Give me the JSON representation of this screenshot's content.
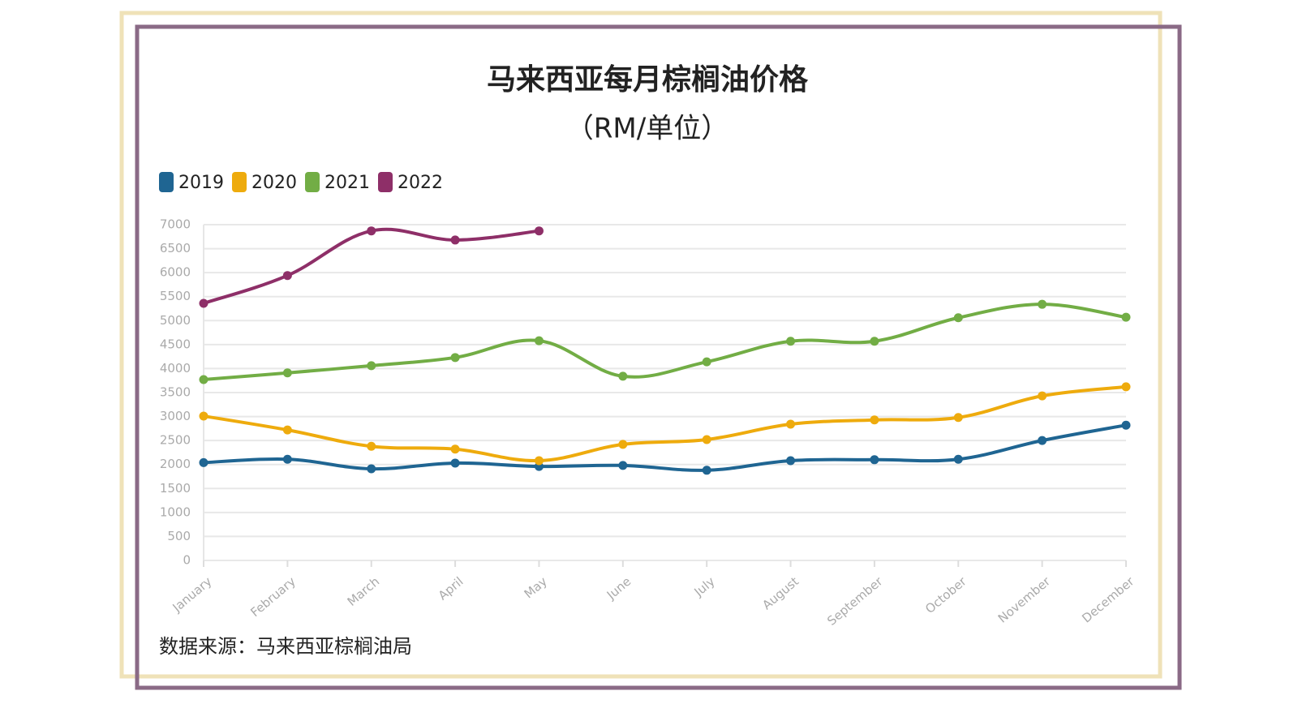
{
  "chart_data": {
    "type": "line",
    "title": "马来西亚每月棕榈油价格",
    "subtitle": "（RM/单位）",
    "source": "数据来源：马来西亚棕榈油局",
    "categories": [
      "January",
      "February",
      "March",
      "April",
      "May",
      "June",
      "July",
      "August",
      "September",
      "October",
      "November",
      "December"
    ],
    "series": [
      {
        "name": "2019",
        "color": "#1f6592",
        "values": [
          2040,
          2110,
          1910,
          2030,
          1960,
          1980,
          1880,
          2080,
          2100,
          2110,
          2500,
          2820
        ]
      },
      {
        "name": "2020",
        "color": "#eeab0d",
        "values": [
          3010,
          2720,
          2380,
          2320,
          2080,
          2420,
          2520,
          2840,
          2930,
          2980,
          3430,
          3620
        ]
      },
      {
        "name": "2021",
        "color": "#72ad45",
        "values": [
          3770,
          3910,
          4060,
          4230,
          4580,
          3840,
          4140,
          4570,
          4570,
          5060,
          5340,
          5070
        ]
      },
      {
        "name": "2022",
        "color": "#8e2f68",
        "values": [
          5360,
          5940,
          6870,
          6680,
          6870,
          null,
          null,
          null,
          null,
          null,
          null,
          null
        ]
      }
    ],
    "ylim": [
      0,
      7000
    ],
    "yticks": [
      0,
      500,
      1000,
      1500,
      2000,
      2500,
      3000,
      3500,
      4000,
      4500,
      5000,
      5500,
      6000,
      6500,
      7000
    ],
    "grid": true,
    "legend": "top-left"
  }
}
